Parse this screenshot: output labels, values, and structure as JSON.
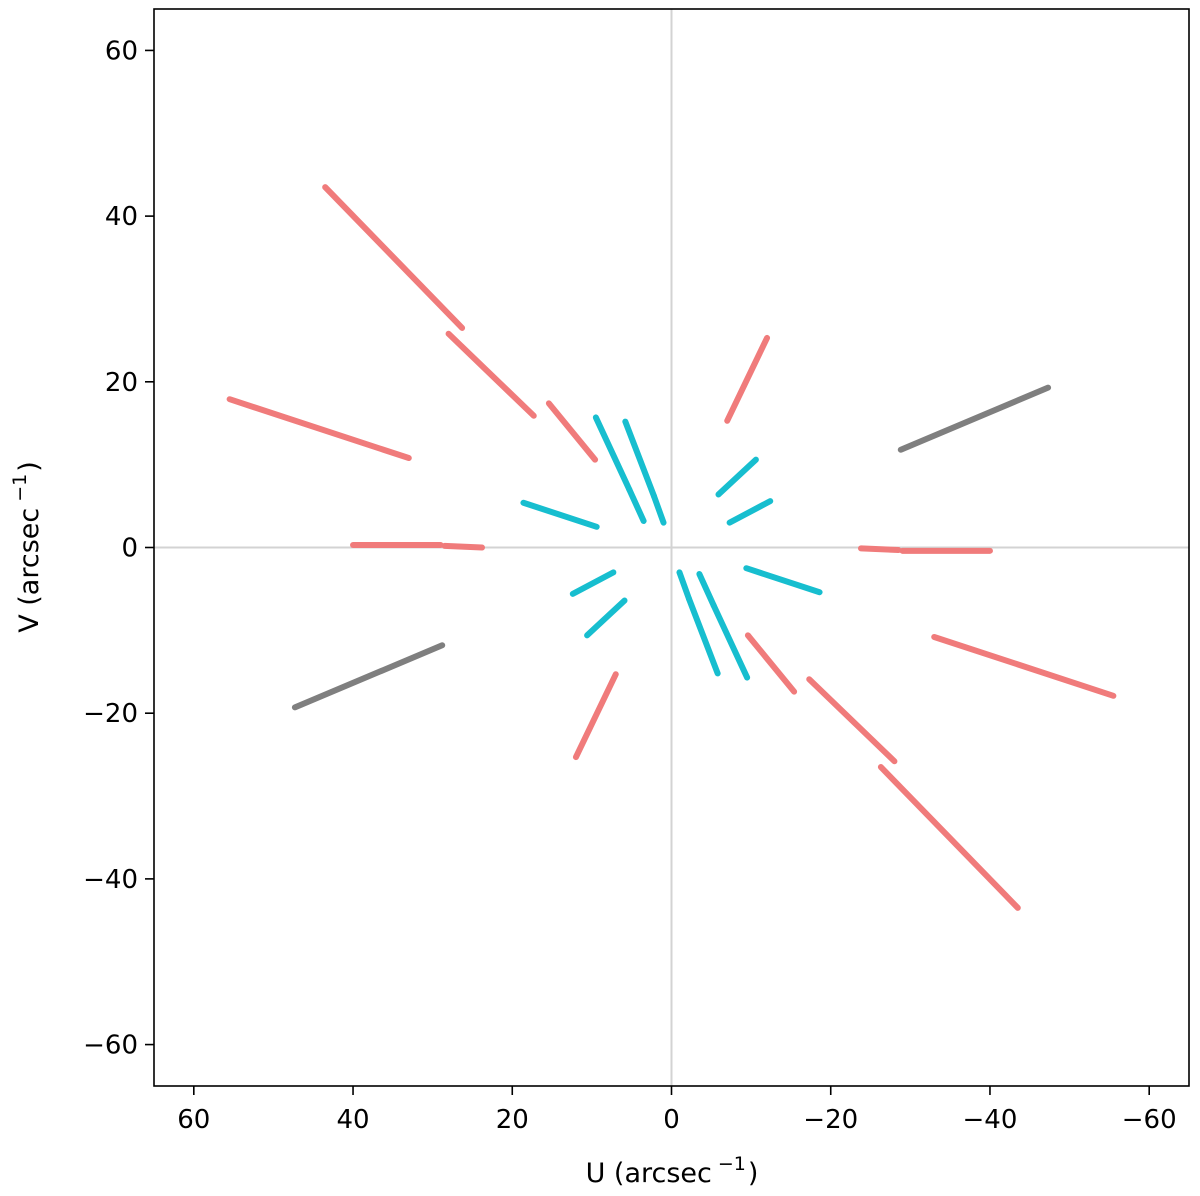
{
  "chart_data": {
    "type": "scatter",
    "title": "",
    "xlabel": "U (arcsec",
    "xlabel_sup": "−1",
    "xlabel_close": ")",
    "ylabel": "V (arcsec",
    "ylabel_sup": "−1",
    "ylabel_close": ")",
    "xlim": [
      65,
      -65
    ],
    "ylim": [
      -65,
      65
    ],
    "xticks": [
      60,
      40,
      20,
      0,
      -20,
      -40,
      -60
    ],
    "yticks": [
      60,
      40,
      20,
      0,
      -20,
      -40,
      -60
    ],
    "xtick_labels": [
      "60",
      "40",
      "20",
      "0",
      "−20",
      "−40",
      "−60"
    ],
    "ytick_labels": [
      "60",
      "40",
      "20",
      "0",
      "−20",
      "−40",
      "−60"
    ],
    "grid": false,
    "reference_lines": {
      "x0": true,
      "y0": true,
      "color": "#d3d3d3"
    },
    "series": [
      {
        "color": "#f07b7b",
        "segments": [
          [
            [
              43.5,
              43.5
            ],
            [
              26.3,
              26.5
            ]
          ],
          [
            [
              28.0,
              25.8
            ],
            [
              17.3,
              15.9
            ]
          ],
          [
            [
              55.5,
              17.9
            ],
            [
              33.0,
              10.8
            ]
          ],
          [
            [
              15.4,
              17.4
            ],
            [
              9.6,
              10.6
            ]
          ],
          [
            [
              40.0,
              0.3
            ],
            [
              29.0,
              0.3
            ]
          ],
          [
            [
              28.5,
              0.2
            ],
            [
              23.8,
              0.0
            ]
          ],
          [
            [
              -7.0,
              15.3
            ],
            [
              -12.0,
              25.3
            ]
          ],
          [
            [
              -43.5,
              -43.5
            ],
            [
              -26.3,
              -26.5
            ]
          ],
          [
            [
              -28.0,
              -25.8
            ],
            [
              -17.3,
              -15.9
            ]
          ],
          [
            [
              -55.5,
              -17.9
            ],
            [
              -33.0,
              -10.8
            ]
          ],
          [
            [
              -15.4,
              -17.4
            ],
            [
              -9.6,
              -10.6
            ]
          ],
          [
            [
              -40.0,
              -0.4
            ],
            [
              -29.0,
              -0.4
            ]
          ],
          [
            [
              -28.5,
              -0.3
            ],
            [
              -23.8,
              -0.1
            ]
          ],
          [
            [
              7.0,
              -15.3
            ],
            [
              12.0,
              -25.3
            ]
          ]
        ]
      },
      {
        "color": "#17becf",
        "segments": [
          [
            [
              9.5,
              15.7
            ],
            [
              5.3,
              7.0
            ]
          ],
          [
            [
              5.3,
              7.0
            ],
            [
              3.5,
              3.2
            ]
          ],
          [
            [
              5.8,
              15.2
            ],
            [
              2.2,
              6.2
            ]
          ],
          [
            [
              2.2,
              6.2
            ],
            [
              1.0,
              3.0
            ]
          ],
          [
            [
              18.6,
              5.4
            ],
            [
              9.4,
              2.5
            ]
          ],
          [
            [
              -5.9,
              6.4
            ],
            [
              -10.6,
              10.6
            ]
          ],
          [
            [
              -7.3,
              3.0
            ],
            [
              -12.4,
              5.6
            ]
          ],
          [
            [
              -9.5,
              -15.7
            ],
            [
              -5.3,
              -7.0
            ]
          ],
          [
            [
              -5.3,
              -7.0
            ],
            [
              -3.5,
              -3.2
            ]
          ],
          [
            [
              -5.8,
              -15.2
            ],
            [
              -2.2,
              -6.2
            ]
          ],
          [
            [
              -2.2,
              -6.2
            ],
            [
              -1.0,
              -3.0
            ]
          ],
          [
            [
              -18.6,
              -5.4
            ],
            [
              -9.4,
              -2.5
            ]
          ],
          [
            [
              5.9,
              -6.4
            ],
            [
              10.6,
              -10.6
            ]
          ],
          [
            [
              7.3,
              -3.0
            ],
            [
              12.4,
              -5.6
            ]
          ]
        ]
      },
      {
        "color": "#7f7f7f",
        "segments": [
          [
            [
              -28.8,
              11.8
            ],
            [
              -47.3,
              19.3
            ]
          ],
          [
            [
              28.8,
              -11.8
            ],
            [
              47.3,
              -19.3
            ]
          ]
        ]
      }
    ]
  }
}
